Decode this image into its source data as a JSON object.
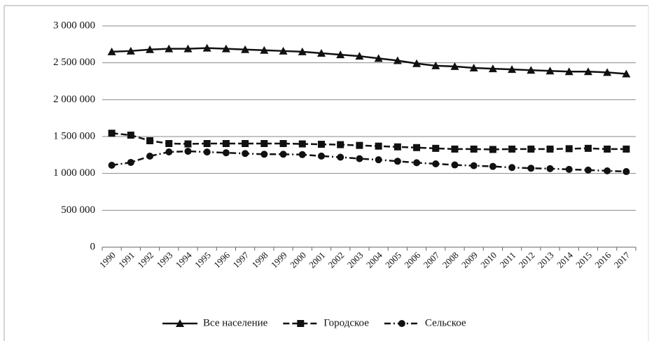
{
  "chart_data": {
    "type": "line",
    "categories": [
      "1990",
      "1991",
      "1992",
      "1993",
      "1994",
      "1995",
      "1996",
      "1997",
      "1998",
      "1999",
      "2000",
      "2001",
      "2002",
      "2003",
      "2004",
      "2005",
      "2006",
      "2007",
      "2008",
      "2009",
      "2010",
      "2011",
      "2012",
      "2013",
      "2014",
      "2015",
      "2016",
      "2017"
    ],
    "series": [
      {
        "name": "Все население",
        "color": "#111111",
        "values": [
          2650000,
          2660000,
          2680000,
          2690000,
          2690000,
          2700000,
          2690000,
          2680000,
          2670000,
          2660000,
          2650000,
          2630000,
          2610000,
          2590000,
          2560000,
          2530000,
          2490000,
          2460000,
          2450000,
          2430000,
          2420000,
          2410000,
          2400000,
          2390000,
          2380000,
          2380000,
          2370000,
          2350000
        ]
      },
      {
        "name": "Городское",
        "color": "#111111",
        "values": [
          1545000,
          1519000,
          1443000,
          1405000,
          1400000,
          1405000,
          1405000,
          1405000,
          1405000,
          1405000,
          1400000,
          1395000,
          1390000,
          1380000,
          1370000,
          1360000,
          1350000,
          1340000,
          1330000,
          1330000,
          1325000,
          1330000,
          1330000,
          1330000,
          1335000,
          1340000,
          1330000,
          1330000
        ]
      },
      {
        "name": "Сельское",
        "color": "#111111",
        "values": [
          1111000,
          1149000,
          1234000,
          1291000,
          1300000,
          1290000,
          1280000,
          1270000,
          1260000,
          1260000,
          1255000,
          1235000,
          1220000,
          1200000,
          1185000,
          1165000,
          1145000,
          1130000,
          1115000,
          1105000,
          1095000,
          1080000,
          1070000,
          1065000,
          1055000,
          1045000,
          1035000,
          1025000
        ]
      }
    ],
    "ylim": [
      0,
      3000000
    ],
    "yticks": [
      0,
      {
        "value": 500000,
        "label": "500 000"
      },
      {
        "value": 1000000,
        "label": "1 000 000"
      },
      {
        "value": 1500000,
        "label": "1 500 000"
      },
      {
        "value": 2000000,
        "label": "2 000 000"
      },
      {
        "value": 2500000,
        "label": "2 500 000"
      },
      {
        "value": 3000000,
        "label": "3 000 000"
      }
    ],
    "grid": true,
    "legend": "bottom"
  }
}
